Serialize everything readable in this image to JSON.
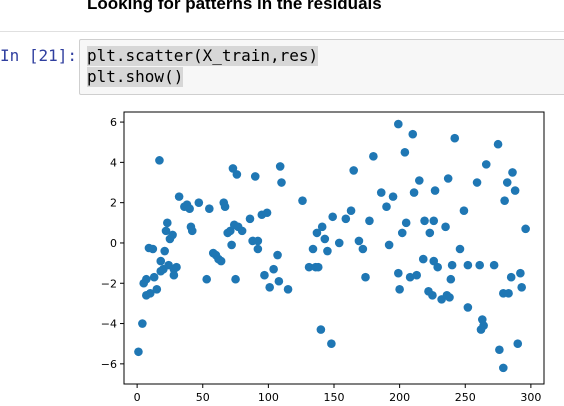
{
  "header": {
    "title": "Looking for patterns in the residuals"
  },
  "cell": {
    "prompt": "In [21]:",
    "code_lines": [
      "plt.scatter(X_train,res)",
      "plt.show()"
    ]
  },
  "chart_data": {
    "type": "scatter",
    "title": "",
    "xlabel": "",
    "ylabel": "",
    "xlim": [
      -10,
      310
    ],
    "ylim": [
      -7,
      6.5
    ],
    "grid": false,
    "color": "#1f77b4",
    "x_ticks": [
      0,
      50,
      100,
      150,
      200,
      250,
      300
    ],
    "y_ticks": [
      -6,
      -4,
      -2,
      0,
      2,
      4,
      6
    ],
    "points": [
      [
        1,
        -5.4
      ],
      [
        4,
        -4
      ],
      [
        5,
        -2
      ],
      [
        7,
        -1.8
      ],
      [
        7,
        -2.6
      ],
      [
        9,
        -0.25
      ],
      [
        10,
        -2.5
      ],
      [
        12,
        -0.3
      ],
      [
        13,
        -1.7
      ],
      [
        15,
        -2.3
      ],
      [
        17,
        4.1
      ],
      [
        18,
        -0.9
      ],
      [
        18,
        -1.4
      ],
      [
        20,
        -1.3
      ],
      [
        21,
        -0.4
      ],
      [
        22,
        0.6
      ],
      [
        23,
        1.0
      ],
      [
        24,
        -1.1
      ],
      [
        25,
        0.2
      ],
      [
        27,
        0.4
      ],
      [
        28,
        -1.3
      ],
      [
        28,
        -1.6
      ],
      [
        30,
        -1.2
      ],
      [
        32,
        2.3
      ],
      [
        36,
        1.8
      ],
      [
        38,
        1.9
      ],
      [
        40,
        1.7
      ],
      [
        41,
        0.8
      ],
      [
        42,
        0.6
      ],
      [
        47,
        2.0
      ],
      [
        53,
        -1.8
      ],
      [
        55,
        1.7
      ],
      [
        58,
        -0.5
      ],
      [
        60,
        -0.6
      ],
      [
        62,
        -0.8
      ],
      [
        64,
        -0.9
      ],
      [
        66,
        2.0
      ],
      [
        67,
        1.8
      ],
      [
        69,
        0.5
      ],
      [
        71,
        0.6
      ],
      [
        72,
        -0.1
      ],
      [
        73,
        3.7
      ],
      [
        74,
        0.9
      ],
      [
        75,
        -1.8
      ],
      [
        76,
        3.4
      ],
      [
        77,
        0.8
      ],
      [
        80,
        0.6
      ],
      [
        86,
        1.2
      ],
      [
        88,
        0.1
      ],
      [
        90,
        3.3
      ],
      [
        92,
        0.1
      ],
      [
        92,
        -0.3
      ],
      [
        95,
        1.4
      ],
      [
        97,
        -1.6
      ],
      [
        99,
        1.5
      ],
      [
        101,
        -2.2
      ],
      [
        104,
        -1.3
      ],
      [
        107,
        -0.6
      ],
      [
        108,
        -1.9
      ],
      [
        109,
        3.8
      ],
      [
        110,
        3.0
      ],
      [
        115,
        -2.3
      ],
      [
        126,
        2.1
      ],
      [
        131,
        -1.2
      ],
      [
        134,
        -0.3
      ],
      [
        136,
        -1.2
      ],
      [
        137,
        0.5
      ],
      [
        138,
        -1.2
      ],
      [
        140,
        -4.3
      ],
      [
        141,
        0.8
      ],
      [
        143,
        0.2
      ],
      [
        145,
        -0.4
      ],
      [
        148,
        -5.0
      ],
      [
        149,
        1.3
      ],
      [
        154,
        0
      ],
      [
        159,
        1.2
      ],
      [
        163,
        1.6
      ],
      [
        165,
        3.6
      ],
      [
        169,
        0.1
      ],
      [
        172,
        -0.3
      ],
      [
        174,
        -1.7
      ],
      [
        177,
        1.1
      ],
      [
        180,
        4.3
      ],
      [
        186,
        2.5
      ],
      [
        190,
        1.8
      ],
      [
        192,
        -0.1
      ],
      [
        195,
        2.3
      ],
      [
        199,
        5.9
      ],
      [
        199,
        -1.5
      ],
      [
        200,
        -2.3
      ],
      [
        202,
        0.5
      ],
      [
        204,
        4.5
      ],
      [
        205,
        1.0
      ],
      [
        208,
        -1.7
      ],
      [
        210,
        5.4
      ],
      [
        211,
        2.5
      ],
      [
        213,
        -1.6
      ],
      [
        215,
        3.1
      ],
      [
        218,
        -0.8
      ],
      [
        219,
        1.1
      ],
      [
        222,
        -2.4
      ],
      [
        223,
        0.5
      ],
      [
        225,
        -2.6
      ],
      [
        226,
        -0.9
      ],
      [
        226,
        1.1
      ],
      [
        227,
        2.6
      ],
      [
        229,
        -1.2
      ],
      [
        232,
        -2.8
      ],
      [
        235,
        0.8
      ],
      [
        236,
        -2.6
      ],
      [
        237,
        3.2
      ],
      [
        238,
        -2.7
      ],
      [
        239,
        -1.8
      ],
      [
        240,
        -1.1
      ],
      [
        242,
        5.2
      ],
      [
        246,
        -0.3
      ],
      [
        249,
        1.6
      ],
      [
        252,
        -1.1
      ],
      [
        252,
        -3.2
      ],
      [
        259,
        3.0
      ],
      [
        261,
        -1.1
      ],
      [
        262,
        -4.3
      ],
      [
        263,
        -3.8
      ],
      [
        264,
        -4.1
      ],
      [
        266,
        3.9
      ],
      [
        272,
        -1.1
      ],
      [
        275,
        4.9
      ],
      [
        276,
        -5.3
      ],
      [
        279,
        -6.2
      ],
      [
        279,
        -2.5
      ],
      [
        280,
        2.1
      ],
      [
        282,
        3.0
      ],
      [
        283,
        -2.5
      ],
      [
        285,
        -1.7
      ],
      [
        286,
        3.5
      ],
      [
        288,
        2.6
      ],
      [
        290,
        -5.0
      ],
      [
        292,
        -1.5
      ],
      [
        293,
        -2.2
      ],
      [
        296,
        0.7
      ]
    ]
  }
}
